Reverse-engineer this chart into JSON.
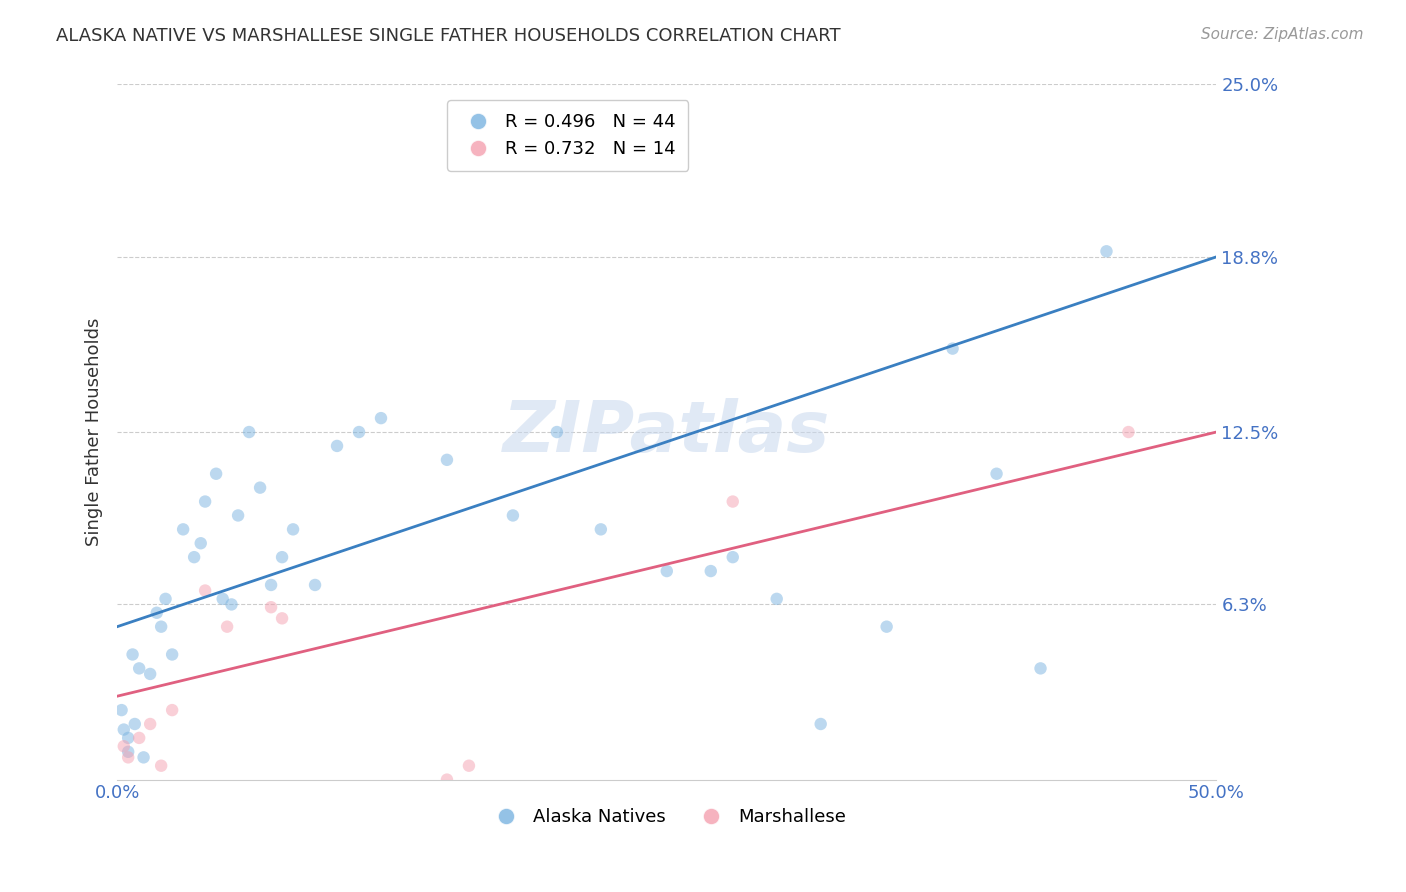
{
  "title": "ALASKA NATIVE VS MARSHALLESE SINGLE FATHER HOUSEHOLDS CORRELATION CHART",
  "source": "Source: ZipAtlas.com",
  "ylabel": "Single Father Households",
  "xlim": [
    0,
    0.5
  ],
  "ylim": [
    0,
    0.25
  ],
  "ytick_positions": [
    0.0,
    0.063,
    0.125,
    0.188,
    0.25
  ],
  "ytick_labels": [
    "",
    "6.3%",
    "12.5%",
    "18.8%",
    "25.0%"
  ],
  "xtick_positions": [
    0.0,
    0.1,
    0.2,
    0.3,
    0.4,
    0.5
  ],
  "xtick_labels": [
    "0.0%",
    "",
    "",
    "",
    "",
    "50.0%"
  ],
  "blue_color": "#7ab3e0",
  "pink_color": "#f4a0b0",
  "blue_line_color": "#3a7fc1",
  "pink_line_color": "#e06080",
  "blue_R": 0.496,
  "blue_N": 44,
  "pink_R": 0.732,
  "pink_N": 14,
  "blue_scatter_x": [
    0.02,
    0.025,
    0.01,
    0.015,
    0.008,
    0.005,
    0.005,
    0.012,
    0.022,
    0.018,
    0.03,
    0.035,
    0.04,
    0.038,
    0.045,
    0.055,
    0.06,
    0.065,
    0.07,
    0.075,
    0.08,
    0.09,
    0.1,
    0.11,
    0.12,
    0.15,
    0.18,
    0.2,
    0.22,
    0.25,
    0.27,
    0.3,
    0.32,
    0.35,
    0.38,
    0.4,
    0.42,
    0.002,
    0.003,
    0.007,
    0.048,
    0.052,
    0.28,
    0.45
  ],
  "blue_scatter_y": [
    0.055,
    0.045,
    0.04,
    0.038,
    0.02,
    0.015,
    0.01,
    0.008,
    0.065,
    0.06,
    0.09,
    0.08,
    0.1,
    0.085,
    0.11,
    0.095,
    0.125,
    0.105,
    0.07,
    0.08,
    0.09,
    0.07,
    0.12,
    0.125,
    0.13,
    0.115,
    0.095,
    0.125,
    0.09,
    0.075,
    0.075,
    0.065,
    0.02,
    0.055,
    0.155,
    0.11,
    0.04,
    0.025,
    0.018,
    0.045,
    0.065,
    0.063,
    0.08,
    0.19
  ],
  "pink_scatter_x": [
    0.005,
    0.01,
    0.015,
    0.02,
    0.025,
    0.04,
    0.05,
    0.07,
    0.075,
    0.15,
    0.16,
    0.28,
    0.46,
    0.003
  ],
  "pink_scatter_y": [
    0.008,
    0.015,
    0.02,
    0.005,
    0.025,
    0.068,
    0.055,
    0.062,
    0.058,
    0.0,
    0.005,
    0.1,
    0.125,
    0.012
  ],
  "blue_line_x": [
    0.0,
    0.5
  ],
  "blue_line_y": [
    0.055,
    0.188
  ],
  "pink_line_x": [
    0.0,
    0.5
  ],
  "pink_line_y": [
    0.03,
    0.125
  ],
  "background_color": "#ffffff",
  "grid_color": "#cccccc",
  "title_color": "#333333",
  "axis_tick_color": "#4472c4",
  "watermark": "ZIPatlas",
  "scatter_size": 80,
  "scatter_alpha": 0.5,
  "line_width": 2.0
}
